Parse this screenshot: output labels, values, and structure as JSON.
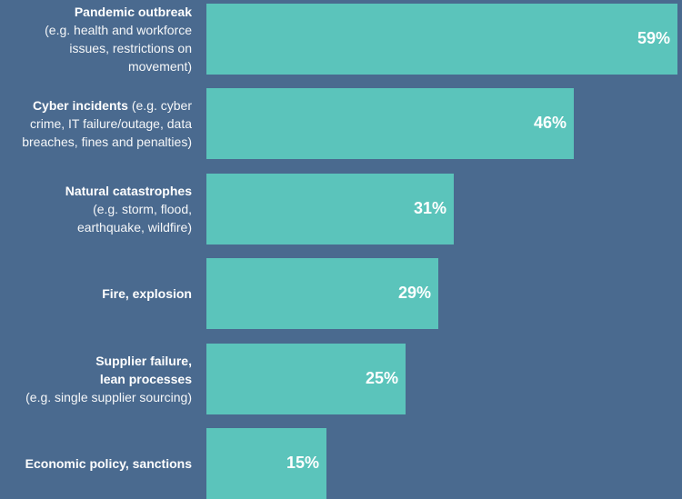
{
  "chart_data": {
    "type": "bar",
    "orientation": "horizontal",
    "categories": [
      {
        "bold": "Pandemic outbreak",
        "bold_line2": "",
        "regular_inline": "",
        "regular_lines": [
          "(e.g. health and workforce",
          "issues, restrictions on movement)"
        ]
      },
      {
        "bold": "Cyber incidents",
        "bold_line2": "",
        "regular_inline": " (e.g. cyber",
        "regular_lines": [
          "crime, IT failure/outage, data",
          "breaches, fines and penalties)"
        ]
      },
      {
        "bold": "Natural catastrophes",
        "bold_line2": "",
        "regular_inline": "",
        "regular_lines": [
          "(e.g. storm, flood,",
          "earthquake, wildfire)"
        ]
      },
      {
        "bold": "Fire, explosion",
        "bold_line2": "",
        "regular_inline": "",
        "regular_lines": []
      },
      {
        "bold": "Supplier failure,",
        "bold_line2": "lean processes",
        "regular_inline": "",
        "regular_lines": [
          "(e.g. single supplier sourcing)"
        ]
      },
      {
        "bold": "Economic policy, sanctions",
        "bold_line2": "",
        "regular_inline": "",
        "regular_lines": []
      }
    ],
    "values": [
      59,
      46,
      31,
      29,
      25,
      15
    ],
    "value_labels": [
      "59%",
      "46%",
      "31%",
      "29%",
      "25%",
      "15%"
    ],
    "xlim": [
      0,
      59
    ],
    "grid": false,
    "colors": {
      "background": "#4a6a8f",
      "bar": "#5bc4bb",
      "text": "#ffffff"
    }
  }
}
